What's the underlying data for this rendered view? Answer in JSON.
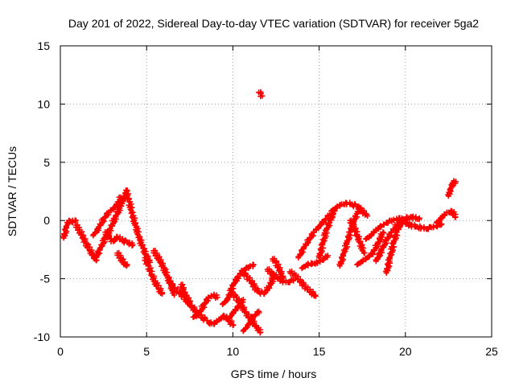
{
  "chart_data": {
    "type": "scatter",
    "title": "Day 201 of 2022, Sidereal Day-to-day VTEC variation (SDTVAR) for receiver 5ga2",
    "xlabel": "GPS time / hours",
    "ylabel": "SDTVAR / TECUs",
    "xlim": [
      0,
      25
    ],
    "ylim": [
      -10,
      15
    ],
    "xticks": [
      0,
      5,
      10,
      15,
      20,
      25
    ],
    "yticks": [
      -10,
      -5,
      0,
      5,
      10,
      15
    ],
    "grid": true,
    "marker": "+",
    "color": "#ff0000",
    "series": [
      {
        "name": "5ga2",
        "tracks": [
          {
            "x": [
              0.2,
              0.35,
              0.5,
              0.7,
              0.9
            ],
            "y": [
              -1.5,
              -0.6,
              0.0,
              -0.1,
              0.0
            ]
          },
          {
            "x": [
              0.9,
              1.1,
              1.3,
              1.5,
              1.7,
              1.9,
              2.1
            ],
            "y": [
              -0.4,
              -0.8,
              -1.4,
              -2.0,
              -2.5,
              -3.0,
              -3.4
            ]
          },
          {
            "x": [
              2.0,
              2.3,
              2.6,
              2.9,
              3.2,
              3.5,
              3.7,
              3.85
            ],
            "y": [
              -3.3,
              -2.5,
              -1.5,
              -0.7,
              0.3,
              1.3,
              2.0,
              2.5
            ]
          },
          {
            "x": [
              1.9,
              2.2,
              2.5,
              2.8,
              3.1,
              3.3,
              3.5
            ],
            "y": [
              -1.3,
              -0.7,
              0.1,
              0.7,
              1.1,
              1.4,
              2.0
            ]
          },
          {
            "x": [
              2.6,
              2.9,
              3.1,
              3.3,
              3.6,
              3.9,
              4.2
            ],
            "y": [
              -1.0,
              -1.6,
              -1.8,
              -1.4,
              -1.7,
              -1.9,
              -2.1
            ]
          },
          {
            "x": [
              3.8,
              4.0,
              4.2,
              4.4,
              4.6,
              4.8,
              5.0,
              5.2
            ],
            "y": [
              2.6,
              1.6,
              0.4,
              -0.6,
              -1.6,
              -2.4,
              -3.1,
              -3.6
            ]
          },
          {
            "x": [
              3.3,
              3.5,
              3.7,
              3.85
            ],
            "y": [
              -2.8,
              -3.2,
              -3.7,
              -3.9
            ]
          },
          {
            "x": [
              4.9,
              5.1,
              5.3,
              5.5,
              5.7,
              5.9
            ],
            "y": [
              -3.2,
              -3.9,
              -4.6,
              -5.3,
              -5.8,
              -6.3
            ]
          },
          {
            "x": [
              5.4,
              5.6,
              5.8,
              6.0,
              6.2,
              6.4,
              6.6
            ],
            "y": [
              -2.6,
              -3.0,
              -3.5,
              -4.1,
              -4.8,
              -5.5,
              -6.4
            ]
          },
          {
            "x": [
              6.3,
              6.6,
              6.9,
              7.2,
              7.5
            ],
            "y": [
              -5.2,
              -5.8,
              -6.2,
              -6.6,
              -7.3
            ]
          },
          {
            "x": [
              7.0,
              7.3,
              7.6,
              7.9,
              8.2,
              8.5
            ],
            "y": [
              -5.5,
              -6.5,
              -7.3,
              -7.9,
              -8.3,
              -8.6
            ]
          },
          {
            "x": [
              7.7,
              8.0,
              8.3,
              8.6,
              8.9,
              9.1
            ],
            "y": [
              -8.3,
              -8.1,
              -7.3,
              -6.6,
              -6.4,
              -6.6
            ]
          },
          {
            "x": [
              8.6,
              8.9,
              9.2,
              9.5,
              9.8,
              10.0
            ],
            "y": [
              -8.8,
              -8.9,
              -8.5,
              -8.2,
              -8.6,
              -9.0
            ]
          },
          {
            "x": [
              9.4,
              9.7,
              10.0,
              10.3,
              10.6,
              10.9,
              11.2
            ],
            "y": [
              -7.2,
              -6.8,
              -5.6,
              -4.8,
              -4.3,
              -4.0,
              -3.8
            ]
          },
          {
            "x": [
              9.7,
              10.0,
              10.3,
              10.6
            ],
            "y": [
              -8.5,
              -8.0,
              -7.4,
              -6.8
            ]
          },
          {
            "x": [
              9.9,
              10.2,
              10.5,
              10.8,
              11.1,
              11.4,
              11.6
            ],
            "y": [
              -6.2,
              -6.6,
              -7.3,
              -8.0,
              -8.6,
              -9.2,
              -9.6
            ]
          },
          {
            "x": [
              10.6,
              10.9,
              11.2,
              11.5
            ],
            "y": [
              -9.5,
              -9.0,
              -8.3,
              -7.8
            ]
          },
          {
            "x": [
              10.5,
              10.8,
              11.1,
              11.3,
              11.5,
              11.8,
              12.1,
              12.4
            ],
            "y": [
              -4.3,
              -4.8,
              -5.3,
              -5.8,
              -6.1,
              -6.3,
              -5.7,
              -4.7
            ]
          },
          {
            "x": [
              11.5,
              11.6,
              11.7
            ],
            "y": [
              11.0,
              10.9,
              10.7
            ]
          },
          {
            "x": [
              12.0,
              12.3,
              12.6,
              12.9,
              13.2,
              13.5
            ],
            "y": [
              -4.2,
              -4.6,
              -4.9,
              -5.2,
              -5.3,
              -5.1
            ]
          },
          {
            "x": [
              12.3,
              12.5,
              12.7,
              12.9
            ],
            "y": [
              -3.3,
              -3.6,
              -4.2,
              -4.9
            ]
          },
          {
            "x": [
              13.3,
              13.6,
              13.9,
              14.2,
              14.5,
              14.8
            ],
            "y": [
              -4.4,
              -4.7,
              -5.2,
              -5.7,
              -6.1,
              -6.5
            ]
          },
          {
            "x": [
              13.8,
              14.1,
              14.4,
              14.7,
              15.0,
              15.3,
              15.6,
              15.9
            ],
            "y": [
              -3.2,
              -2.4,
              -1.7,
              -1.0,
              -0.5,
              0.0,
              0.4,
              0.8
            ]
          },
          {
            "x": [
              14.0,
              14.3,
              14.6,
              14.9,
              15.2,
              15.5
            ],
            "y": [
              -4.1,
              -3.8,
              -3.7,
              -3.6,
              -3.4,
              -3.0
            ]
          },
          {
            "x": [
              15.0,
              15.2,
              15.4,
              15.6,
              15.8
            ],
            "y": [
              -3.2,
              -2.1,
              -0.9,
              -0.2,
              0.5
            ]
          },
          {
            "x": [
              15.7,
              16.0,
              16.3,
              16.6,
              16.9,
              17.2,
              17.5,
              17.8
            ],
            "y": [
              0.8,
              1.1,
              1.4,
              1.5,
              1.4,
              1.2,
              0.8,
              0.4
            ]
          },
          {
            "x": [
              16.2,
              16.4,
              16.6,
              16.8,
              17.0,
              17.2,
              17.4
            ],
            "y": [
              -3.9,
              -3.0,
              -2.0,
              -1.0,
              -0.1,
              0.6,
              1.1
            ]
          },
          {
            "x": [
              16.8,
              17.0,
              17.2,
              17.4,
              17.6
            ],
            "y": [
              0.0,
              -0.5,
              -1.2,
              -2.0,
              -2.8
            ]
          },
          {
            "x": [
              17.2,
              17.5,
              17.8,
              18.1,
              18.4,
              18.7
            ],
            "y": [
              -3.8,
              -3.5,
              -3.2,
              -2.8,
              -2.0,
              -1.0
            ]
          },
          {
            "x": [
              17.7,
              18.0,
              18.3,
              18.6,
              18.9,
              19.2,
              19.5,
              19.8
            ],
            "y": [
              -1.6,
              -1.3,
              -0.8,
              -0.5,
              -0.2,
              0.0,
              0.1,
              0.2
            ]
          },
          {
            "x": [
              18.9,
              19.1,
              19.3,
              19.5,
              19.7,
              19.9,
              20.1
            ],
            "y": [
              -4.5,
              -3.3,
              -2.0,
              -1.0,
              -0.4,
              0.0,
              0.2
            ]
          },
          {
            "x": [
              18.3,
              18.6,
              18.9,
              19.2,
              19.5,
              19.8,
              20.1
            ],
            "y": [
              -3.5,
              -2.6,
              -1.7,
              -1.0,
              -0.4,
              0.0,
              0.3
            ]
          },
          {
            "x": [
              20.0,
              20.3,
              20.6,
              20.9,
              21.2,
              21.5,
              21.8,
              22.1
            ],
            "y": [
              -0.2,
              -0.4,
              -0.5,
              -0.6,
              -0.7,
              -0.6,
              -0.5,
              -0.3
            ]
          },
          {
            "x": [
              20.2,
              20.4,
              20.6,
              20.8
            ],
            "y": [
              0.2,
              0.3,
              0.2,
              0.1
            ]
          },
          {
            "x": [
              21.8,
              22.1,
              22.4,
              22.7,
              22.9
            ],
            "y": [
              -0.2,
              0.2,
              0.7,
              0.8,
              0.3
            ]
          },
          {
            "x": [
              22.5,
              22.6,
              22.7,
              22.8,
              22.9
            ],
            "y": [
              2.1,
              2.6,
              3.0,
              3.4,
              3.2
            ]
          }
        ]
      }
    ]
  }
}
